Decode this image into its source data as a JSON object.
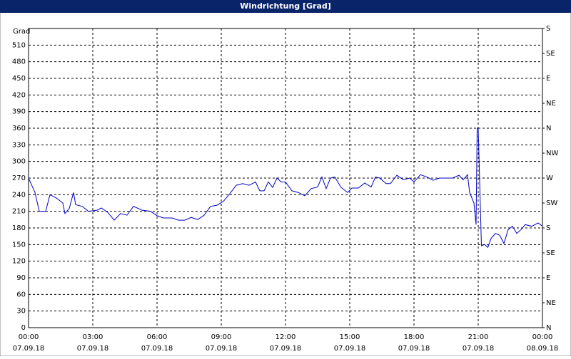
{
  "chart_data": {
    "type": "line",
    "title": "Windrichtung [Grad]",
    "ylabel": "Grad",
    "color": "#0000c8",
    "grid": true,
    "xlim": [
      0,
      24
    ],
    "xticks": [
      {
        "value": 0,
        "label": "00:00 07.09.18"
      },
      {
        "value": 3,
        "label": "03:00 07.09.18"
      },
      {
        "value": 6,
        "label": "06:00 07.09.18"
      },
      {
        "value": 9,
        "label": "09:00 07.09.18"
      },
      {
        "value": 12,
        "label": "12:00 07.09.18"
      },
      {
        "value": 15,
        "label": "15:00 07.09.18"
      },
      {
        "value": 18,
        "label": "18:00 07.09.18"
      },
      {
        "value": 21,
        "label": "21:00 07.09.18"
      },
      {
        "value": 24,
        "label": "00:00 08.09.18"
      }
    ],
    "ylim": [
      0,
      540
    ],
    "yticks": [
      0,
      30,
      60,
      90,
      120,
      150,
      180,
      210,
      240,
      270,
      300,
      330,
      360,
      390,
      420,
      450,
      480,
      510
    ],
    "y2lim": [
      0,
      540
    ],
    "y2ticks": [
      {
        "value": 0,
        "label": "N"
      },
      {
        "value": 45,
        "label": "NE"
      },
      {
        "value": 90,
        "label": "E"
      },
      {
        "value": 135,
        "label": "SE"
      },
      {
        "value": 180,
        "label": "S"
      },
      {
        "value": 225,
        "label": "SW"
      },
      {
        "value": 270,
        "label": "W"
      },
      {
        "value": 315,
        "label": "NW"
      },
      {
        "value": 360,
        "label": "N"
      },
      {
        "value": 405,
        "label": "NE"
      },
      {
        "value": 450,
        "label": "E"
      },
      {
        "value": 495,
        "label": "SE"
      },
      {
        "value": 540,
        "label": "S"
      }
    ],
    "x": [
      0,
      0.3,
      0.5,
      0.8,
      1.0,
      1.3,
      1.6,
      1.7,
      1.9,
      2.1,
      2.2,
      2.5,
      2.8,
      3.2,
      3.4,
      3.7,
      4.0,
      4.3,
      4.6,
      4.9,
      5.3,
      5.7,
      6.0,
      6.3,
      6.7,
      7.0,
      7.3,
      7.6,
      7.9,
      8.2,
      8.5,
      8.8,
      9.1,
      9.4,
      9.7,
      10.0,
      10.3,
      10.6,
      10.8,
      11.0,
      11.2,
      11.4,
      11.6,
      11.8,
      12.0,
      12.3,
      12.6,
      12.9,
      13.2,
      13.5,
      13.7,
      13.9,
      14.1,
      14.3,
      14.6,
      14.9,
      15.1,
      15.4,
      15.7,
      16.0,
      16.2,
      16.4,
      16.7,
      16.9,
      17.2,
      17.5,
      17.8,
      18.0,
      18.3,
      18.6,
      18.9,
      19.2,
      19.5,
      19.8,
      20.1,
      20.3,
      20.5,
      20.6,
      20.8,
      20.9,
      20.95,
      21.0,
      21.15,
      21.3,
      21.45,
      21.6,
      21.8,
      22.0,
      22.2,
      22.4,
      22.6,
      22.8,
      23.0,
      23.2,
      23.5,
      23.8,
      24.0
    ],
    "values": [
      270,
      244,
      210,
      210,
      240,
      234,
      225,
      206,
      215,
      244,
      222,
      219,
      210,
      212,
      216,
      208,
      194,
      206,
      203,
      219,
      212,
      210,
      202,
      198,
      198,
      194,
      194,
      199,
      195,
      203,
      219,
      221,
      228,
      242,
      257,
      260,
      257,
      263,
      247,
      247,
      263,
      253,
      270,
      263,
      263,
      247,
      244,
      238,
      251,
      254,
      272,
      251,
      270,
      272,
      253,
      244,
      252,
      252,
      261,
      254,
      272,
      270,
      260,
      260,
      275,
      267,
      270,
      263,
      276,
      272,
      266,
      270,
      270,
      270,
      275,
      267,
      276,
      244,
      225,
      186,
      360,
      360,
      148,
      150,
      145,
      161,
      170,
      167,
      152,
      177,
      183,
      170,
      177,
      186,
      183,
      189,
      183
    ]
  }
}
